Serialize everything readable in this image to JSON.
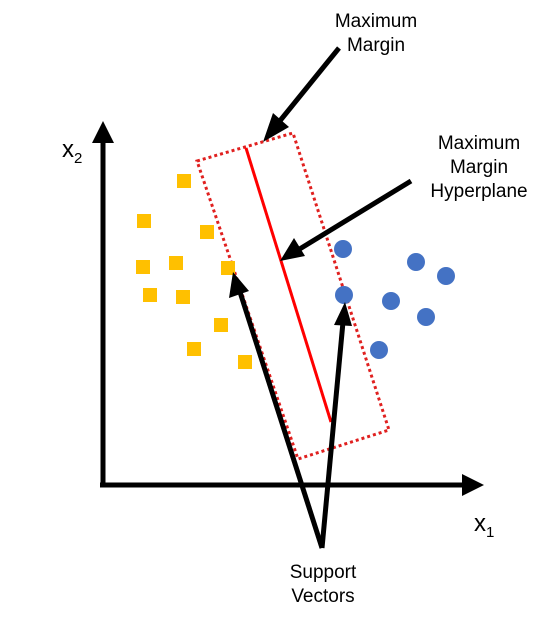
{
  "labels": {
    "maximum_margin": [
      "Maximum",
      "Margin"
    ],
    "maximum_margin_hyperplane": [
      "Maximum",
      "Margin",
      "Hyperplane"
    ],
    "support_vectors": [
      "Support",
      "Vectors"
    ]
  },
  "axes": {
    "x": {
      "name": "x",
      "subscript": "1"
    },
    "y": {
      "name": "x",
      "subscript": "2"
    }
  },
  "colors": {
    "class_a": "#FFC000",
    "class_b": "#4472C4",
    "hyperplane": "#FF0000",
    "margin_box": "#E0201F",
    "axis": "#000000"
  },
  "shapes": {
    "class_a": "square",
    "class_b": "circle"
  }
}
